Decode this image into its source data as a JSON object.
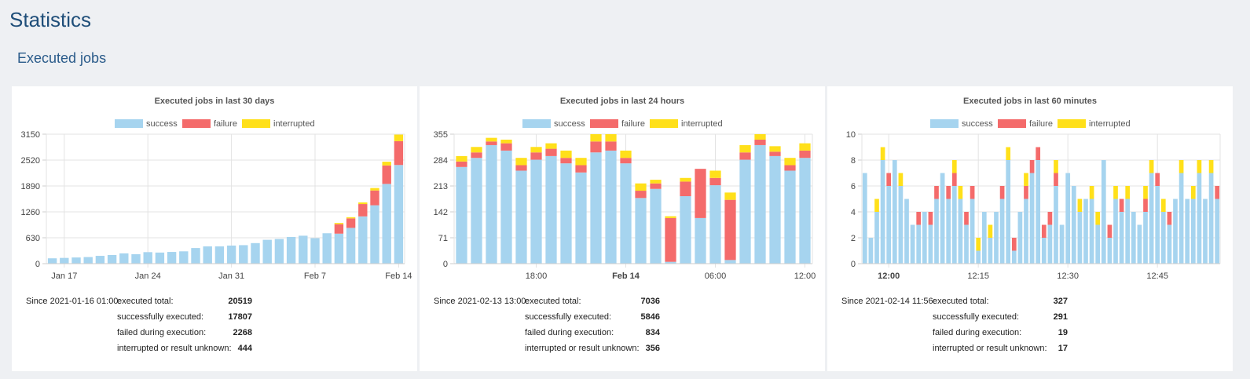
{
  "page": {
    "title": "Statistics",
    "section": "Executed jobs"
  },
  "colors": {
    "success": "#a6d4ef",
    "failure": "#f46b6b",
    "interrupted": "#ffe01a",
    "grid": "#e3e3e3"
  },
  "legend": [
    "success",
    "failure",
    "interrupted"
  ],
  "chart_data": [
    {
      "type": "bar",
      "title": "Executed jobs in last 30 days",
      "stacked": true,
      "ylim": [
        0,
        3150
      ],
      "yticks": [
        "0",
        "630",
        "1260",
        "1890",
        "2520",
        "3150"
      ],
      "ytick_values": [
        0,
        630,
        1260,
        1890,
        2520,
        3150
      ],
      "xticks": [
        {
          "label": "Jan 17",
          "index": 1,
          "bold": false
        },
        {
          "label": "Jan 24",
          "index": 8,
          "bold": false
        },
        {
          "label": "Jan 31",
          "index": 15,
          "bold": false
        },
        {
          "label": "Feb 7",
          "index": 22,
          "bold": false
        },
        {
          "label": "Feb 14",
          "index": 29,
          "bold": false
        }
      ],
      "series": [
        {
          "name": "success",
          "values": [
            130,
            140,
            150,
            160,
            190,
            210,
            250,
            230,
            280,
            270,
            285,
            300,
            380,
            420,
            420,
            440,
            450,
            500,
            580,
            600,
            650,
            680,
            620,
            740,
            730,
            870,
            1150,
            1420,
            1940,
            2400
          ]
        },
        {
          "name": "failure",
          "values": [
            0,
            0,
            0,
            0,
            0,
            0,
            0,
            0,
            0,
            0,
            0,
            0,
            0,
            0,
            0,
            0,
            0,
            0,
            0,
            0,
            0,
            0,
            0,
            0,
            230,
            230,
            300,
            360,
            450,
            580
          ]
        },
        {
          "name": "interrupted",
          "values": [
            0,
            0,
            0,
            0,
            0,
            0,
            0,
            0,
            0,
            0,
            0,
            0,
            0,
            0,
            0,
            0,
            0,
            0,
            0,
            0,
            0,
            0,
            0,
            0,
            30,
            30,
            40,
            60,
            90,
            160
          ]
        }
      ],
      "stats": {
        "since": "Since 2021-01-16 01:00:",
        "rows": [
          {
            "label": "executed total:",
            "value": "20519"
          },
          {
            "label": "successfully executed:",
            "value": "17807"
          },
          {
            "label": "failed during execution:",
            "value": "2268"
          },
          {
            "label": "interrupted or result unknown:",
            "value": "444"
          }
        ]
      }
    },
    {
      "type": "bar",
      "title": "Executed jobs in last 24 hours",
      "stacked": true,
      "ylim": [
        0,
        355
      ],
      "yticks": [
        "0",
        "71",
        "142",
        "213",
        "284",
        "355"
      ],
      "ytick_values": [
        0,
        71,
        142,
        213,
        284,
        355
      ],
      "xticks": [
        {
          "label": "18:00",
          "index": 5,
          "bold": false
        },
        {
          "label": "Feb 14",
          "index": 11,
          "bold": true
        },
        {
          "label": "06:00",
          "index": 17,
          "bold": false
        },
        {
          "label": "12:00",
          "index": 23,
          "bold": false
        }
      ],
      "series": [
        {
          "name": "success",
          "values": [
            265,
            290,
            325,
            310,
            255,
            285,
            295,
            275,
            250,
            305,
            310,
            275,
            180,
            205,
            5,
            185,
            125,
            215,
            10,
            285,
            325,
            295,
            255,
            290
          ]
        },
        {
          "name": "failure",
          "values": [
            15,
            15,
            10,
            20,
            15,
            20,
            20,
            15,
            20,
            30,
            25,
            15,
            20,
            15,
            120,
            40,
            135,
            20,
            165,
            20,
            15,
            12,
            15,
            20
          ]
        },
        {
          "name": "interrupted",
          "values": [
            15,
            15,
            10,
            10,
            20,
            15,
            15,
            20,
            20,
            20,
            20,
            20,
            20,
            10,
            5,
            10,
            0,
            20,
            20,
            20,
            15,
            15,
            20,
            20
          ]
        }
      ],
      "stats": {
        "since": "Since 2021-02-13 13:00:",
        "rows": [
          {
            "label": "executed total:",
            "value": "7036"
          },
          {
            "label": "successfully executed:",
            "value": "5846"
          },
          {
            "label": "failed during execution:",
            "value": "834"
          },
          {
            "label": "interrupted or result unknown:",
            "value": "356"
          }
        ]
      }
    },
    {
      "type": "bar",
      "title": "Executed jobs in last 60 minutes",
      "stacked": true,
      "ylim": [
        0,
        10
      ],
      "yticks": [
        "0",
        "2",
        "4",
        "6",
        "8",
        "10"
      ],
      "ytick_values": [
        0,
        2,
        4,
        6,
        8,
        10
      ],
      "xticks": [
        {
          "label": "12:00",
          "index": 4,
          "bold": true
        },
        {
          "label": "12:15",
          "index": 19,
          "bold": false
        },
        {
          "label": "12:30",
          "index": 34,
          "bold": false
        },
        {
          "label": "12:45",
          "index": 49,
          "bold": false
        }
      ],
      "series": [
        {
          "name": "success",
          "values": [
            7,
            2,
            4,
            8,
            6,
            8,
            6,
            5,
            3,
            3,
            4,
            3,
            5,
            7,
            5,
            6,
            5,
            3,
            5,
            1,
            4,
            2,
            4,
            5,
            8,
            1,
            4,
            5,
            7,
            8,
            2,
            3,
            6,
            3,
            7,
            6,
            4,
            5,
            5,
            3,
            8,
            2,
            5,
            4,
            5,
            4,
            3,
            4,
            7,
            6,
            4,
            3,
            5,
            7,
            5,
            5,
            7,
            5,
            7,
            5
          ]
        },
        {
          "name": "failure",
          "values": [
            0,
            0,
            0,
            0,
            1,
            0,
            0,
            0,
            0,
            1,
            0,
            1,
            1,
            0,
            1,
            1,
            0,
            1,
            1,
            0,
            0,
            0,
            0,
            1,
            0,
            1,
            0,
            1,
            1,
            1,
            1,
            1,
            1,
            0,
            0,
            0,
            0,
            0,
            0,
            0,
            0,
            1,
            0,
            1,
            0,
            0,
            0,
            1,
            0,
            1,
            0,
            1,
            0,
            0,
            0,
            0,
            0,
            0,
            0,
            1
          ]
        },
        {
          "name": "interrupted",
          "values": [
            0,
            0,
            1,
            1,
            0,
            0,
            1,
            0,
            0,
            0,
            0,
            0,
            0,
            0,
            0,
            1,
            1,
            0,
            0,
            1,
            0,
            1,
            0,
            0,
            1,
            0,
            0,
            1,
            0,
            0,
            0,
            0,
            1,
            0,
            0,
            0,
            1,
            0,
            1,
            1,
            0,
            0,
            1,
            0,
            1,
            0,
            0,
            1,
            1,
            0,
            1,
            0,
            0,
            1,
            0,
            1,
            1,
            0,
            1,
            0
          ]
        }
      ],
      "stats": {
        "since": "Since 2021-02-14 11:56:",
        "rows": [
          {
            "label": "executed total:",
            "value": "327"
          },
          {
            "label": "successfully executed:",
            "value": "291"
          },
          {
            "label": "failed during execution:",
            "value": "19"
          },
          {
            "label": "interrupted or result unknown:",
            "value": "17"
          }
        ]
      }
    }
  ]
}
